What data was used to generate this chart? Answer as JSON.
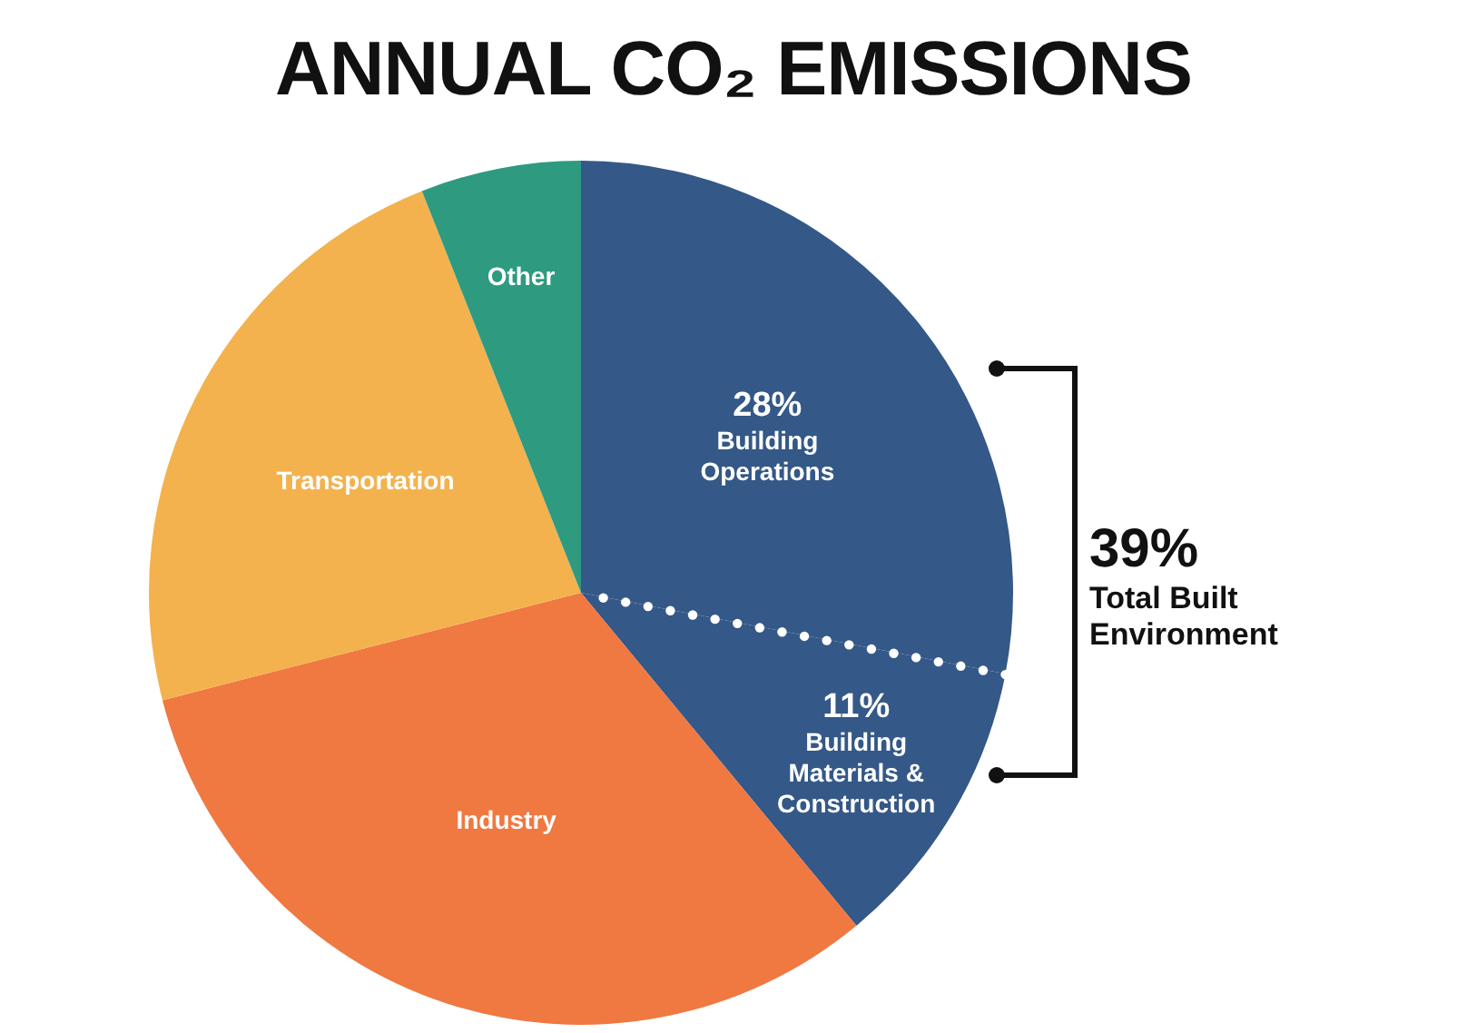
{
  "chart_data": {
    "type": "pie",
    "title": "ANNUAL CO₂ EMISSIONS",
    "categories": [
      "Building Operations",
      "Building Materials & Construction",
      "Industry",
      "Transportation",
      "Other"
    ],
    "values": [
      28,
      11,
      32,
      23,
      6
    ],
    "value_labels": [
      "28%",
      "11%",
      null,
      null,
      null
    ],
    "colors": [
      "#345887",
      "#345887",
      "#f07841",
      "#f3b24e",
      "#2e9a80"
    ],
    "annotations": [
      "39%",
      "Total Built Environment"
    ],
    "legend": false
  }
}
